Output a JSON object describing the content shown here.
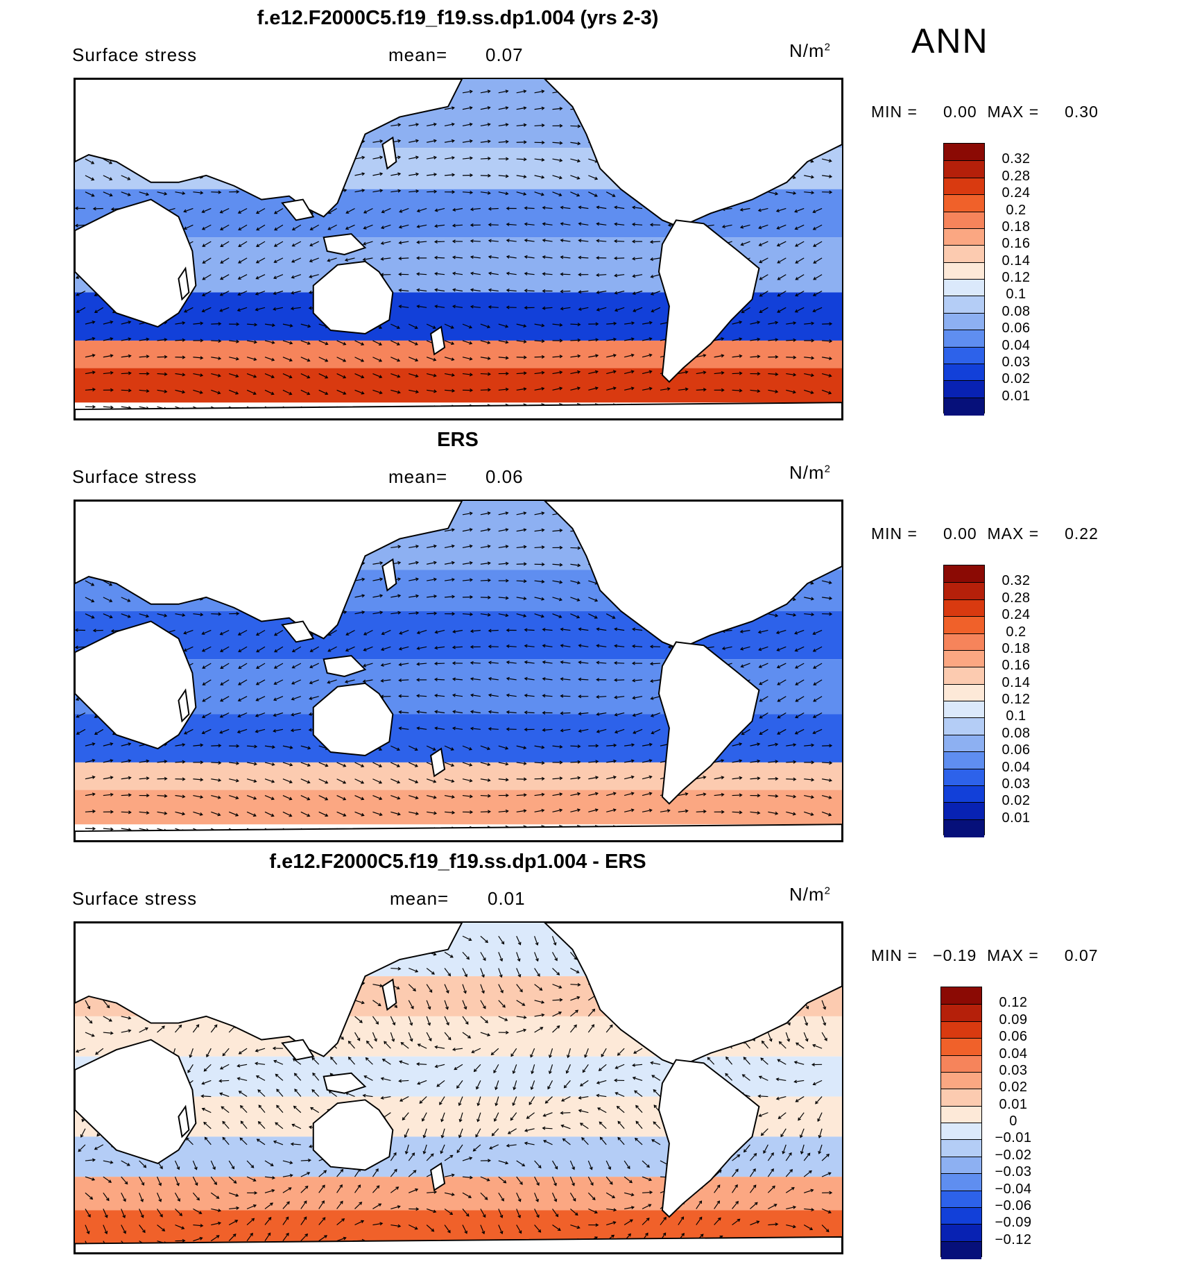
{
  "season": "ANN",
  "panels": [
    {
      "title": "f.e12.F2000C5.f19_f19.ss.dp1.004 (yrs 2-3)",
      "variable": "Surface stress",
      "mean_label": "mean=",
      "mean_value": "0.07",
      "units": "N/m",
      "units_exp": "2",
      "min_label": "MIN =",
      "min_value": "0.00",
      "max_label": "MAX =",
      "max_value": "0.30",
      "levels": [
        "0.32",
        "0.28",
        "0.24",
        "0.2",
        "0.18",
        "0.16",
        "0.14",
        "0.12",
        "0.1",
        "0.08",
        "0.06",
        "0.04",
        "0.03",
        "0.02",
        "0.01"
      ],
      "colors": [
        "#8b0a04",
        "#b5200a",
        "#d93a10",
        "#f0612a",
        "#f6845b",
        "#fba782",
        "#fccbb0",
        "#fde9d8",
        "#dbe9fb",
        "#b4cdf6",
        "#8db0f2",
        "#5f8ef0",
        "#2d62ea",
        "#1240d9",
        "#0822b3",
        "#06107a"
      ]
    },
    {
      "title": "ERS",
      "variable": "Surface stress",
      "mean_label": "mean=",
      "mean_value": "0.06",
      "units": "N/m",
      "units_exp": "2",
      "min_label": "MIN =",
      "min_value": "0.00",
      "max_label": "MAX =",
      "max_value": "0.22",
      "levels": [
        "0.32",
        "0.28",
        "0.24",
        "0.2",
        "0.18",
        "0.16",
        "0.14",
        "0.12",
        "0.1",
        "0.08",
        "0.06",
        "0.04",
        "0.03",
        "0.02",
        "0.01"
      ],
      "colors": [
        "#8b0a04",
        "#b5200a",
        "#d93a10",
        "#f0612a",
        "#f6845b",
        "#fba782",
        "#fccbb0",
        "#fde9d8",
        "#dbe9fb",
        "#b4cdf6",
        "#8db0f2",
        "#5f8ef0",
        "#2d62ea",
        "#1240d9",
        "#0822b3",
        "#06107a"
      ]
    },
    {
      "title": "f.e12.F2000C5.f19_f19.ss.dp1.004 - ERS",
      "variable": "Surface stress",
      "mean_label": "mean=",
      "mean_value": "0.01",
      "units": "N/m",
      "units_exp": "2",
      "min_label": "MIN =",
      "min_value": "−0.19",
      "max_label": "MAX =",
      "max_value": "0.07",
      "levels": [
        "0.12",
        "0.09",
        "0.06",
        "0.04",
        "0.03",
        "0.02",
        "0.01",
        "0",
        "−0.01",
        "−0.02",
        "−0.03",
        "−0.04",
        "−0.06",
        "−0.09",
        "−0.12"
      ],
      "colors": [
        "#8b0a04",
        "#b5200a",
        "#d93a10",
        "#f0612a",
        "#f6845b",
        "#fba782",
        "#fccbb0",
        "#fde9d8",
        "#dbe9fb",
        "#b4cdf6",
        "#8db0f2",
        "#5f8ef0",
        "#2d62ea",
        "#1240d9",
        "#0822b3",
        "#06107a"
      ]
    }
  ]
}
